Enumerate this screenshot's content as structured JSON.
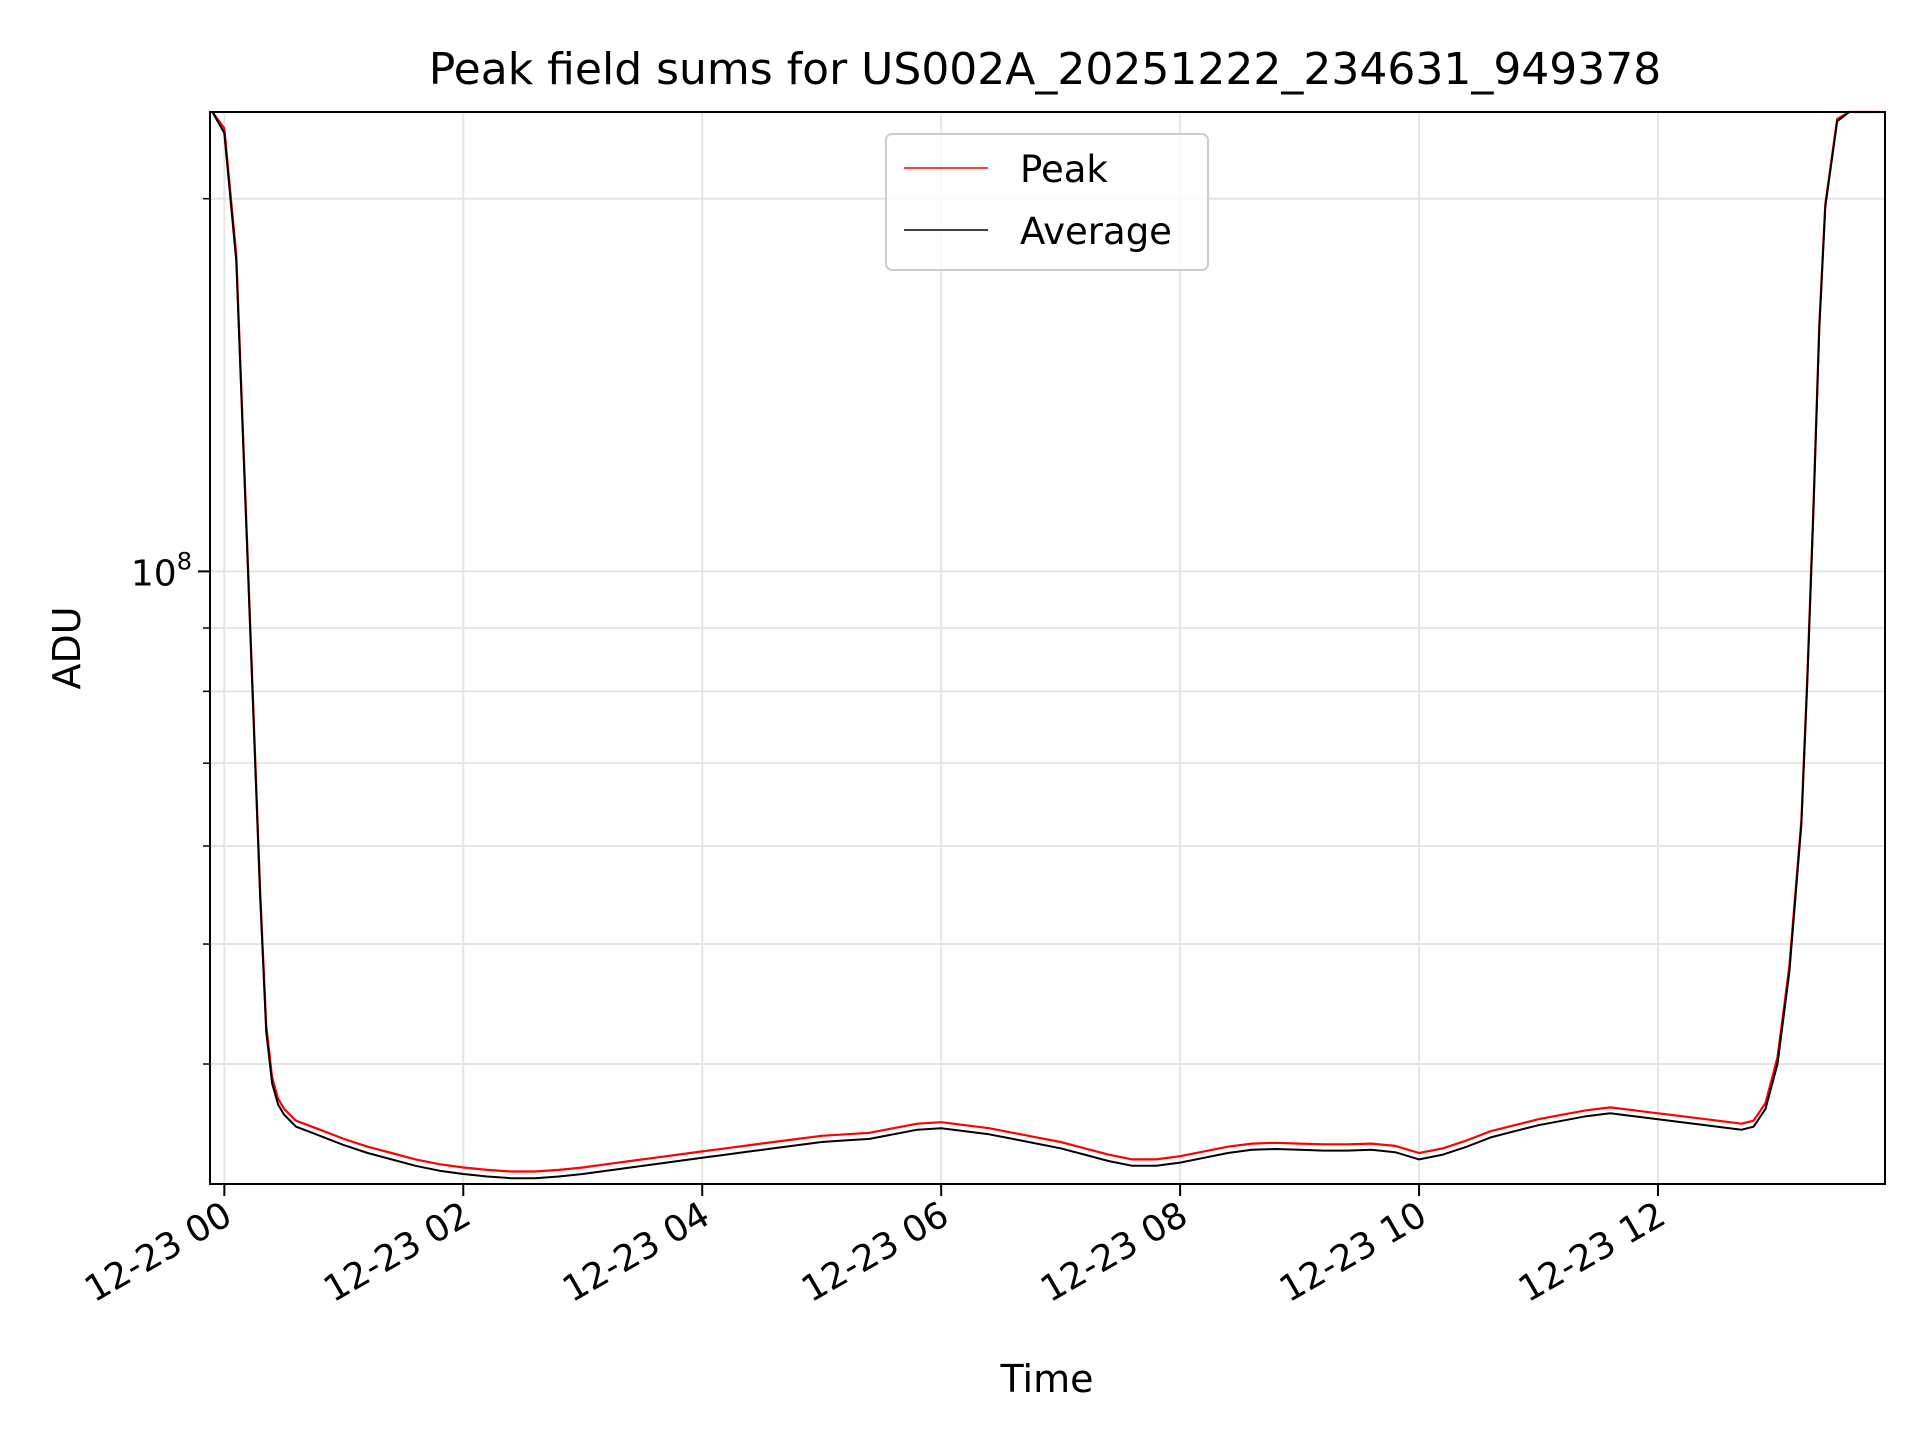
{
  "chart_data": {
    "type": "line",
    "title": "Peak field sums for US002A_20251222_234631_949378",
    "xlabel": "Time",
    "ylabel": "ADU",
    "yscale": "log",
    "xlim": [
      -0.12,
      13.9
    ],
    "ylim": [
      32000000,
      235000000
    ],
    "x_unit": "hours since 12-23 00:00",
    "grid": true,
    "legend_position": "top-center",
    "x_ticks": [
      {
        "value": 0,
        "label": "12-23 00"
      },
      {
        "value": 2,
        "label": "12-23 02"
      },
      {
        "value": 4,
        "label": "12-23 04"
      },
      {
        "value": 6,
        "label": "12-23 06"
      },
      {
        "value": 8,
        "label": "12-23 08"
      },
      {
        "value": 10,
        "label": "12-23 10"
      },
      {
        "value": 12,
        "label": "12-23 12"
      }
    ],
    "y_ticks": [
      {
        "value": 100000000,
        "base": "10",
        "exp": "8"
      }
    ],
    "y_minor_ticks": [
      40000000,
      50000000,
      60000000,
      70000000,
      80000000,
      90000000,
      200000000
    ],
    "series": [
      {
        "name": "Peak",
        "color": "#ff0000",
        "x": [
          -0.1,
          0.0,
          0.1,
          0.2,
          0.3,
          0.35,
          0.4,
          0.45,
          0.5,
          0.6,
          0.7,
          0.8,
          1.0,
          1.2,
          1.4,
          1.6,
          1.8,
          2.0,
          2.2,
          2.4,
          2.6,
          2.8,
          3.0,
          3.2,
          3.4,
          3.6,
          3.8,
          4.0,
          4.2,
          4.4,
          4.6,
          4.8,
          5.0,
          5.2,
          5.4,
          5.6,
          5.8,
          6.0,
          6.2,
          6.4,
          6.6,
          6.8,
          7.0,
          7.2,
          7.4,
          7.6,
          7.8,
          8.0,
          8.2,
          8.4,
          8.6,
          8.8,
          9.0,
          9.2,
          9.4,
          9.6,
          9.8,
          10.0,
          10.2,
          10.4,
          10.6,
          10.8,
          11.0,
          11.2,
          11.4,
          11.6,
          11.8,
          12.0,
          12.2,
          12.4,
          12.6,
          12.7,
          12.8,
          12.9,
          13.0,
          13.1,
          13.2,
          13.25,
          13.3,
          13.35,
          13.4,
          13.5,
          13.6,
          13.7,
          13.85
        ],
        "values": [
          235000000,
          228000000,
          180000000,
          100000000,
          55000000,
          43000000,
          39000000,
          37500000,
          36800000,
          36000000,
          35700000,
          35400000,
          34800000,
          34300000,
          33900000,
          33500000,
          33200000,
          33000000,
          32850000,
          32750000,
          32750000,
          32850000,
          33000000,
          33200000,
          33400000,
          33600000,
          33800000,
          34000000,
          34200000,
          34400000,
          34600000,
          34800000,
          35000000,
          35100000,
          35200000,
          35500000,
          35800000,
          35900000,
          35700000,
          35500000,
          35200000,
          34900000,
          34600000,
          34200000,
          33800000,
          33500000,
          33500000,
          33700000,
          34000000,
          34300000,
          34500000,
          34550000,
          34500000,
          34450000,
          34450000,
          34500000,
          34350000,
          33900000,
          34200000,
          34700000,
          35300000,
          35700000,
          36100000,
          36400000,
          36700000,
          36900000,
          36700000,
          36500000,
          36300000,
          36100000,
          35900000,
          35800000,
          36000000,
          37200000,
          40500000,
          48000000,
          63000000,
          82000000,
          112000000,
          158000000,
          198000000,
          232000000,
          235000000,
          235000000,
          235000000
        ]
      },
      {
        "name": "Average",
        "color": "#000000",
        "x": [
          -0.1,
          0.0,
          0.1,
          0.2,
          0.3,
          0.35,
          0.4,
          0.45,
          0.5,
          0.6,
          0.7,
          0.8,
          1.0,
          1.2,
          1.4,
          1.6,
          1.8,
          2.0,
          2.2,
          2.4,
          2.6,
          2.8,
          3.0,
          3.2,
          3.4,
          3.6,
          3.8,
          4.0,
          4.2,
          4.4,
          4.6,
          4.8,
          5.0,
          5.2,
          5.4,
          5.6,
          5.8,
          6.0,
          6.2,
          6.4,
          6.6,
          6.8,
          7.0,
          7.2,
          7.4,
          7.6,
          7.8,
          8.0,
          8.2,
          8.4,
          8.6,
          8.8,
          9.0,
          9.2,
          9.4,
          9.6,
          9.8,
          10.0,
          10.2,
          10.4,
          10.6,
          10.8,
          11.0,
          11.2,
          11.4,
          11.6,
          11.8,
          12.0,
          12.2,
          12.4,
          12.6,
          12.7,
          12.8,
          12.9,
          13.0,
          13.1,
          13.2,
          13.25,
          13.3,
          13.35,
          13.4,
          13.5,
          13.6,
          13.7,
          13.85
        ],
        "values": [
          235000000,
          226000000,
          178000000,
          99000000,
          54500000,
          42500000,
          38600000,
          37100000,
          36400000,
          35600000,
          35300000,
          35000000,
          34400000,
          33900000,
          33500000,
          33100000,
          32800000,
          32600000,
          32450000,
          32350000,
          32350000,
          32450000,
          32600000,
          32800000,
          33000000,
          33200000,
          33400000,
          33600000,
          33800000,
          34000000,
          34200000,
          34400000,
          34600000,
          34700000,
          34800000,
          35100000,
          35400000,
          35500000,
          35300000,
          35100000,
          34800000,
          34500000,
          34200000,
          33800000,
          33400000,
          33100000,
          33100000,
          33300000,
          33600000,
          33900000,
          34100000,
          34150000,
          34100000,
          34050000,
          34050000,
          34100000,
          33950000,
          33500000,
          33800000,
          34300000,
          34900000,
          35300000,
          35700000,
          36000000,
          36300000,
          36500000,
          36300000,
          36100000,
          35900000,
          35700000,
          35500000,
          35400000,
          35600000,
          36800000,
          40000000,
          47500000,
          62500000,
          81500000,
          111000000,
          157000000,
          197000000,
          231000000,
          235000000,
          235000000,
          235000000
        ]
      }
    ]
  }
}
